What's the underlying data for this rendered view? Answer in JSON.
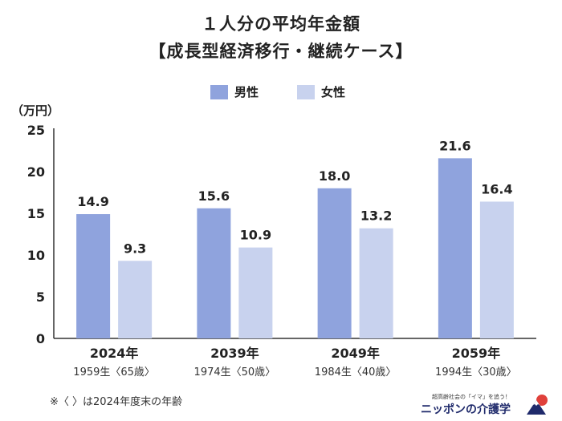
{
  "title": "１人分の平均年金額",
  "subtitle": "【成長型経済移行・継続ケース】",
  "legend": [
    {
      "label": "男性",
      "color": "#8fa3dd"
    },
    {
      "label": "女性",
      "color": "#c8d2ee"
    }
  ],
  "footnote": "※〈 〉は2024年度末の年齢",
  "logo": {
    "tagline": "超高齢社会の「イマ」を追う！",
    "name": "ニッポンの介護学"
  },
  "chart_data": {
    "type": "bar",
    "ylabel": "（万円）",
    "ylim": [
      0,
      25
    ],
    "yticks": [
      0,
      5,
      10,
      15,
      20,
      25
    ],
    "categories": [
      "2024年",
      "2039年",
      "2049年",
      "2059年"
    ],
    "sublabels": [
      "1959生〈65歳〉",
      "1974生〈50歳〉",
      "1984生〈40歳〉",
      "1994生〈30歳〉"
    ],
    "series": [
      {
        "name": "男性",
        "values": [
          14.9,
          15.6,
          18.0,
          21.6
        ],
        "labels": [
          "14.9",
          "15.6",
          "18.0",
          "21.6"
        ]
      },
      {
        "name": "女性",
        "values": [
          9.3,
          10.9,
          13.2,
          16.4
        ],
        "labels": [
          "9.3",
          "10.9",
          "13.2",
          "16.4"
        ]
      }
    ]
  }
}
